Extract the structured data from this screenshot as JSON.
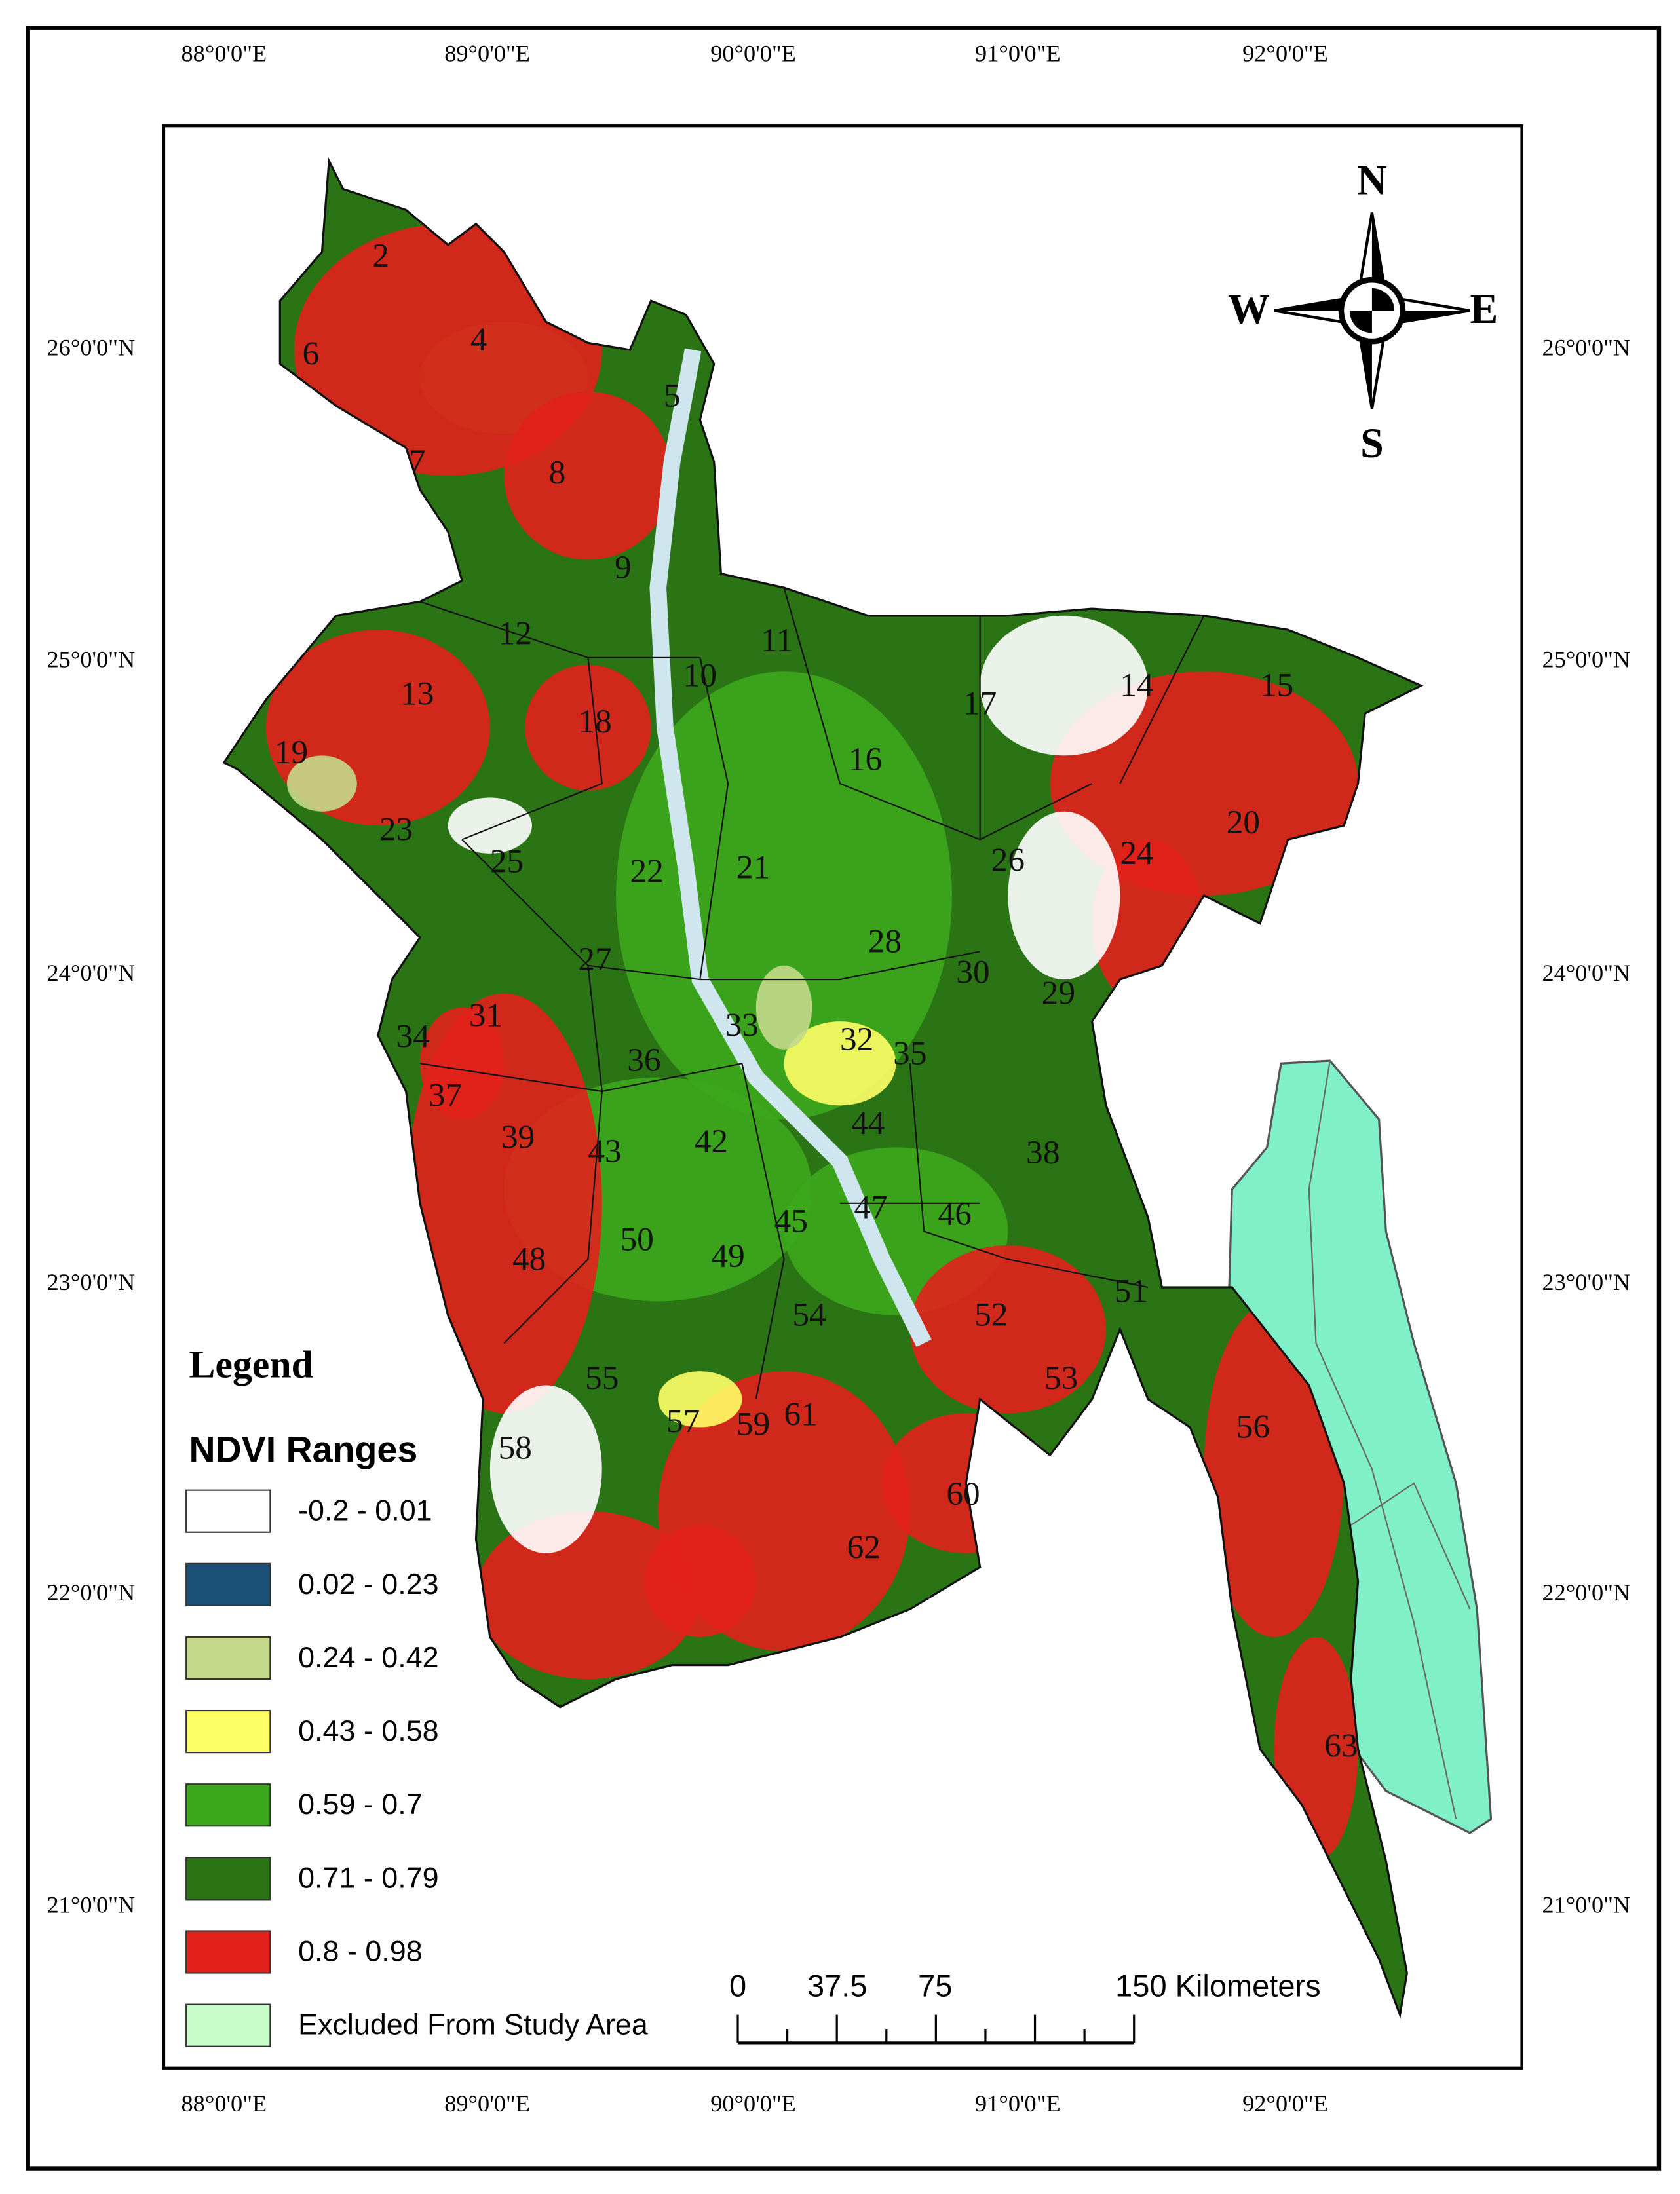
{
  "map": {
    "longitude_labels": [
      "88°0'0\"E",
      "89°0'0\"E",
      "90°0'0\"E",
      "91°0'0\"E",
      "92°0'0\"E"
    ],
    "latitude_labels": [
      "26°0'0\"N",
      "25°0'0\"N",
      "24°0'0\"N",
      "23°0'0\"N",
      "22°0'0\"N",
      "21°0'0\"N"
    ],
    "compass": {
      "north": "N",
      "south": "S",
      "east": "E",
      "west": "W"
    },
    "districts": [
      "2",
      "4",
      "6",
      "5",
      "7",
      "8",
      "9",
      "12",
      "10",
      "11",
      "13",
      "18",
      "19",
      "17",
      "14",
      "15",
      "16",
      "20",
      "23",
      "25",
      "22",
      "21",
      "26",
      "24",
      "28",
      "30",
      "29",
      "27",
      "31",
      "34",
      "33",
      "32",
      "35",
      "36",
      "37",
      "44",
      "39",
      "43",
      "42",
      "38",
      "47",
      "46",
      "45",
      "50",
      "49",
      "48",
      "51",
      "52",
      "54",
      "53",
      "55",
      "57",
      "56",
      "58",
      "59",
      "61",
      "60",
      "62",
      "63"
    ],
    "legend": {
      "title": "Legend",
      "subtitle": "NDVI Ranges",
      "items": [
        {
          "label": "-0.2 - 0.01",
          "color": "#ffffff"
        },
        {
          "label": "0.02 - 0.23",
          "color": "#1a4f78"
        },
        {
          "label": "0.24 - 0.42",
          "color": "#c4d88c"
        },
        {
          "label": "0.43 - 0.58",
          "color": "#ffff66"
        },
        {
          "label": "0.59 - 0.7",
          "color": "#3ca81c"
        },
        {
          "label": "0.71 - 0.79",
          "color": "#2b7416"
        },
        {
          "label": "0.8 - 0.98",
          "color": "#e2211c"
        },
        {
          "label": "Excluded From Study Area",
          "color": "#c8fcc8"
        }
      ]
    },
    "scale_bar": {
      "labels": [
        "0",
        "37.5",
        "75",
        "150 Kilometers"
      ]
    }
  }
}
